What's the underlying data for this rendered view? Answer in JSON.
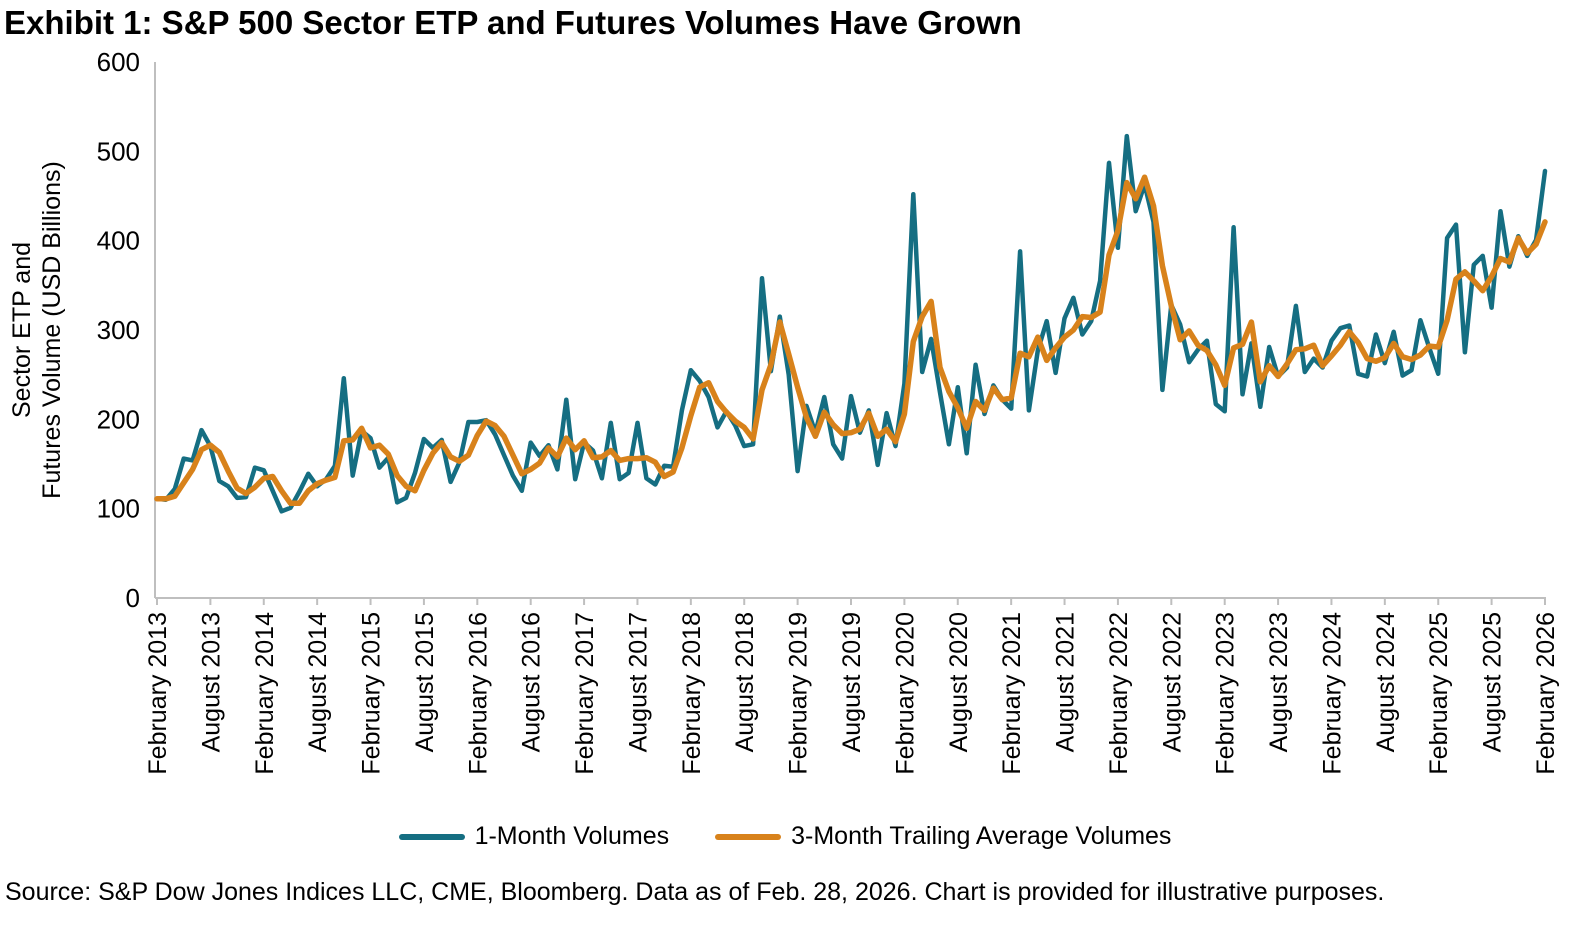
{
  "title": "Exhibit 1: S&P 500 Sector ETP and Futures Volumes Have Grown",
  "source_note": "Source: S&P Dow Jones Indices LLC, CME, Bloomberg. Data as of Feb. 28, 2026. Chart is provided for illustrative purposes.",
  "legend": {
    "series1_label": "1-Month Volumes",
    "series2_label": "3-Month Trailing Average Volumes"
  },
  "colors": {
    "series1": "#156E82",
    "series2": "#D8821B",
    "axis": "#BFBFBF",
    "text": "#000000"
  },
  "chart_data": {
    "type": "line",
    "title": "Exhibit 1: S&P 500 Sector ETP and Futures Volumes Have Grown",
    "xlabel": "",
    "ylabel_line1": "Sector ETP and",
    "ylabel_line2": "Futures Volume (USD Billions)",
    "ylim": [
      0,
      600
    ],
    "yticks": [
      0,
      100,
      200,
      300,
      400,
      500,
      600
    ],
    "grid": false,
    "legend_position": "bottom",
    "x_interval": "monthly",
    "x_start": "February 2013",
    "x_end": "February 2026",
    "x_tick_every_n_months": 6,
    "x_tick_labels": [
      "February 2013",
      "August 2013",
      "February 2014",
      "August 2014",
      "February 2015",
      "August 2015",
      "February 2016",
      "August 2016",
      "February 2017",
      "August 2017",
      "February 2018",
      "August 2018",
      "February 2019",
      "August 2019",
      "February 2020",
      "August 2020",
      "February 2021",
      "August 2021",
      "February 2022",
      "August 2022",
      "February 2023",
      "August 2023",
      "February 2024",
      "August 2024",
      "February 2025",
      "August 2025",
      "February 2026"
    ],
    "series": [
      {
        "name": "1-Month Volumes",
        "color": "#156E82",
        "values": [
          111,
          110,
          122,
          156,
          154,
          188,
          170,
          131,
          125,
          112,
          113,
          146,
          143,
          120,
          97,
          101,
          119,
          139,
          125,
          133,
          148,
          246,
          137,
          187,
          179,
          146,
          157,
          107,
          112,
          140,
          178,
          168,
          177,
          130,
          152,
          197,
          197,
          199,
          183,
          160,
          137,
          120,
          174,
          159,
          171,
          144,
          222,
          133,
          174,
          165,
          134,
          196,
          133,
          140,
          196,
          134,
          127,
          148,
          147,
          210,
          255,
          243,
          225,
          191,
          209,
          193,
          170,
          172,
          358,
          254,
          315,
          250,
          142,
          215,
          185,
          225,
          172,
          156,
          226,
          185,
          210,
          149,
          207,
          170,
          240,
          452,
          253,
          290,
          230,
          172,
          236,
          162,
          261,
          206,
          238,
          222,
          212,
          388,
          210,
          277,
          310,
          252,
          313,
          336,
          295,
          310,
          355,
          487,
          392,
          517,
          433,
          463,
          421,
          233,
          328,
          306,
          264,
          278,
          288,
          217,
          209,
          415,
          228,
          285,
          214,
          281,
          248,
          258,
          327,
          253,
          268,
          258,
          288,
          302,
          305,
          251,
          248,
          295,
          263,
          298,
          249,
          255,
          311,
          280,
          251,
          403,
          418,
          275,
          373,
          383,
          325,
          433,
          371,
          405,
          383,
          401,
          478
        ]
      },
      {
        "name": "3-Month Trailing Average Volumes",
        "color": "#D8821B",
        "values": [
          111,
          111,
          114,
          129,
          144,
          166,
          171,
          163,
          142,
          123,
          117,
          124,
          134,
          136,
          120,
          106,
          106,
          120,
          128,
          132,
          135,
          176,
          177,
          190,
          168,
          171,
          161,
          137,
          125,
          120,
          143,
          162,
          174,
          158,
          153,
          160,
          182,
          198,
          193,
          181,
          160,
          139,
          144,
          151,
          168,
          158,
          179,
          166,
          176,
          157,
          158,
          165,
          154,
          156,
          156,
          157,
          152,
          136,
          141,
          168,
          204,
          236,
          241,
          220,
          208,
          198,
          191,
          178,
          233,
          261,
          309,
          273,
          236,
          202,
          181,
          208,
          194,
          184,
          185,
          189,
          207,
          181,
          189,
          175,
          206,
          287,
          315,
          332,
          258,
          231,
          213,
          190,
          220,
          210,
          235,
          222,
          224,
          274,
          270,
          292,
          266,
          280,
          292,
          300,
          315,
          314,
          320,
          384,
          411,
          465,
          447,
          471,
          439,
          372,
          327,
          289,
          299,
          283,
          277,
          261,
          238,
          280,
          284,
          309,
          242,
          260,
          248,
          262,
          278,
          279,
          283,
          260,
          271,
          283,
          298,
          286,
          268,
          265,
          269,
          285,
          270,
          267,
          272,
          282,
          281,
          311,
          357,
          365,
          355,
          344,
          360,
          380,
          376,
          403,
          386,
          396,
          421
        ]
      }
    ]
  }
}
